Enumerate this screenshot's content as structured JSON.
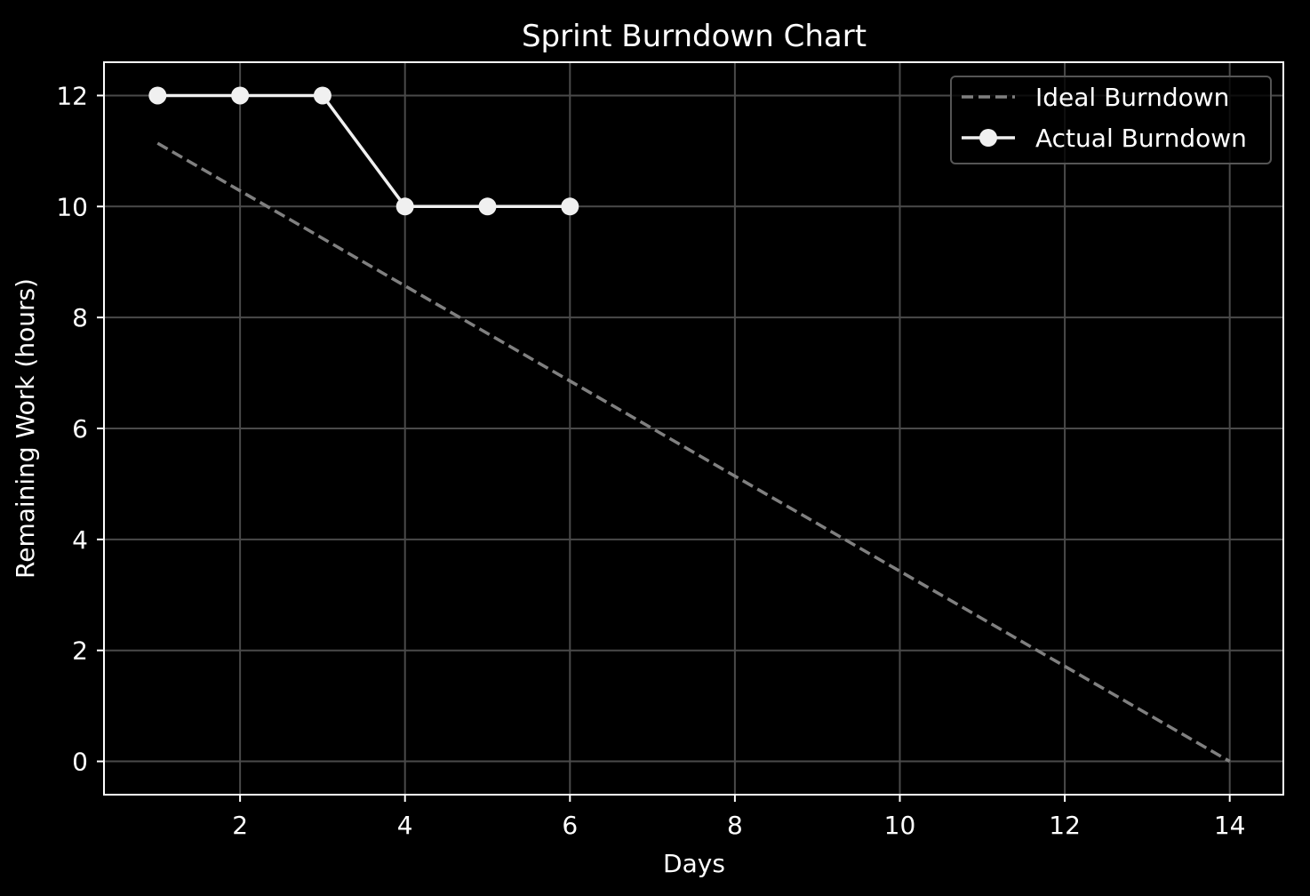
{
  "chart_data": {
    "type": "line",
    "title": "Sprint Burndown Chart",
    "xlabel": "Days",
    "ylabel": "Remaining Work (hours)",
    "xlim": [
      0.35,
      14.65
    ],
    "ylim": [
      -0.6,
      12.6
    ],
    "xticks": [
      2,
      4,
      6,
      8,
      10,
      12,
      14
    ],
    "yticks": [
      0,
      2,
      4,
      6,
      8,
      10,
      12
    ],
    "grid": true,
    "legend_position": "top-right",
    "series": [
      {
        "name": "Ideal Burndown",
        "style": "dashed",
        "color": "#808080",
        "x": [
          1,
          14
        ],
        "y": [
          11.14,
          0
        ]
      },
      {
        "name": "Actual Burndown",
        "style": "solid-with-markers",
        "color": "#f0f0f0",
        "x": [
          1,
          2,
          3,
          4,
          5,
          6
        ],
        "y": [
          12,
          12,
          12,
          10,
          10,
          10
        ]
      }
    ]
  }
}
